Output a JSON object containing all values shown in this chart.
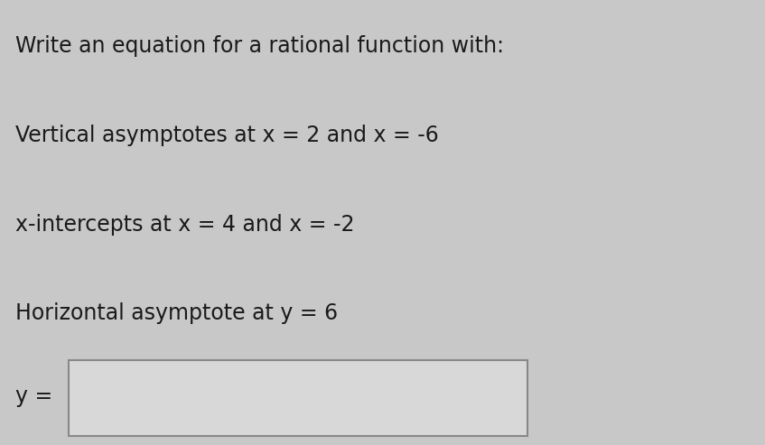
{
  "title": "Write an equation for a rational function with:",
  "line1": "Vertical asymptotes at x = 2 and x = -6",
  "line2": "x-intercepts at x = 4 and x = -2",
  "line3": "Horizontal asymptote at y = 6",
  "label_y": "y =",
  "bg_color": "#c8c8c8",
  "text_color": "#1a1a1a",
  "box_color": "#d8d8d8",
  "box_edge_color": "#888888",
  "title_fontsize": 17,
  "body_fontsize": 17,
  "label_fontsize": 17
}
